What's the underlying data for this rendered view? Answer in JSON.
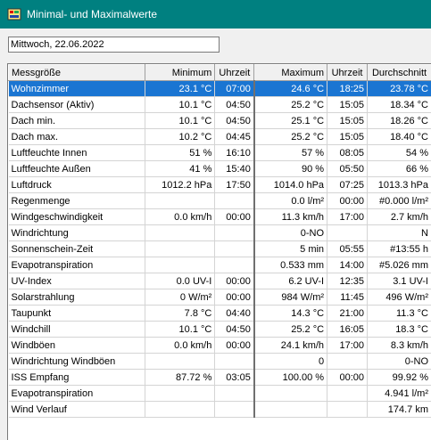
{
  "window": {
    "title": "Minimal- und Maximalwerte"
  },
  "date_field": {
    "value": "Mittwoch, 22.06.2022"
  },
  "table": {
    "headers": {
      "name": "Messgröße",
      "min": "Minimum",
      "min_time": "Uhrzeit",
      "max": "Maximum",
      "max_time": "Uhrzeit",
      "avg": "Durchschnitt"
    },
    "selected_row": 0,
    "rows": [
      {
        "name": "Wohnzimmer",
        "min": "23.1 °C",
        "min_time": "07:00",
        "max": "24.6 °C",
        "max_time": "18:25",
        "avg": "23.78 °C"
      },
      {
        "name": "Dachsensor (Aktiv)",
        "min": "10.1 °C",
        "min_time": "04:50",
        "max": "25.2 °C",
        "max_time": "15:05",
        "avg": "18.34 °C"
      },
      {
        "name": "Dach min.",
        "min": "10.1 °C",
        "min_time": "04:50",
        "max": "25.1 °C",
        "max_time": "15:05",
        "avg": "18.26 °C"
      },
      {
        "name": "Dach max.",
        "min": "10.2 °C",
        "min_time": "04:45",
        "max": "25.2 °C",
        "max_time": "15:05",
        "avg": "18.40 °C"
      },
      {
        "name": "Luftfeuchte Innen",
        "min": "51 %",
        "min_time": "16:10",
        "max": "57 %",
        "max_time": "08:05",
        "avg": "54 %"
      },
      {
        "name": "Luftfeuchte Außen",
        "min": "41 %",
        "min_time": "15:40",
        "max": "90 %",
        "max_time": "05:50",
        "avg": "66 %"
      },
      {
        "name": "Luftdruck",
        "min": "1012.2 hPa",
        "min_time": "17:50",
        "max": "1014.0 hPa",
        "max_time": "07:25",
        "avg": "1013.3 hPa"
      },
      {
        "name": "Regenmenge",
        "min": "",
        "min_time": "",
        "max": "0.0 l/m²",
        "max_time": "00:00",
        "avg": "#0.000 l/m²"
      },
      {
        "name": "Windgeschwindigkeit",
        "min": "0.0 km/h",
        "min_time": "00:00",
        "max": "11.3 km/h",
        "max_time": "17:00",
        "avg": "2.7 km/h"
      },
      {
        "name": "Windrichtung",
        "min": "",
        "min_time": "",
        "max": "0-NO",
        "max_time": "",
        "avg": "N"
      },
      {
        "name": "Sonnenschein-Zeit",
        "min": "",
        "min_time": "",
        "max": "5 min",
        "max_time": "05:55",
        "avg": "#13:55 h"
      },
      {
        "name": "Evapotranspiration",
        "min": "",
        "min_time": "",
        "max": "0.533 mm",
        "max_time": "14:00",
        "avg": "#5.026 mm"
      },
      {
        "name": "UV-Index",
        "min": "0.0 UV-I",
        "min_time": "00:00",
        "max": "6.2 UV-I",
        "max_time": "12:35",
        "avg": "3.1 UV-I"
      },
      {
        "name": "Solarstrahlung",
        "min": "0 W/m²",
        "min_time": "00:00",
        "max": "984 W/m²",
        "max_time": "11:45",
        "avg": "496 W/m²"
      },
      {
        "name": "Taupunkt",
        "min": "7.8 °C",
        "min_time": "04:40",
        "max": "14.3 °C",
        "max_time": "21:00",
        "avg": "11.3 °C"
      },
      {
        "name": "Windchill",
        "min": "10.1 °C",
        "min_time": "04:50",
        "max": "25.2 °C",
        "max_time": "16:05",
        "avg": "18.3 °C"
      },
      {
        "name": "Windböen",
        "min": "0.0 km/h",
        "min_time": "00:00",
        "max": "24.1 km/h",
        "max_time": "17:00",
        "avg": "8.3 km/h"
      },
      {
        "name": "Windrichtung Windböen",
        "min": "",
        "min_time": "",
        "max": "0",
        "max_time": "",
        "avg": "0-NO"
      },
      {
        "name": "ISS Empfang",
        "min": "87.72 %",
        "min_time": "03:05",
        "max": "100.00 %",
        "max_time": "00:00",
        "avg": "99.92 %"
      },
      {
        "name": "Evapotranspiration",
        "min": "",
        "min_time": "",
        "max": "",
        "max_time": "",
        "avg": "4.941 l/m²"
      },
      {
        "name": "Wind Verlauf",
        "min": "",
        "min_time": "",
        "max": "",
        "max_time": "",
        "avg": "174.7 km"
      }
    ]
  },
  "colors": {
    "titlebar": "#008080",
    "selection": "#1a75d2"
  }
}
